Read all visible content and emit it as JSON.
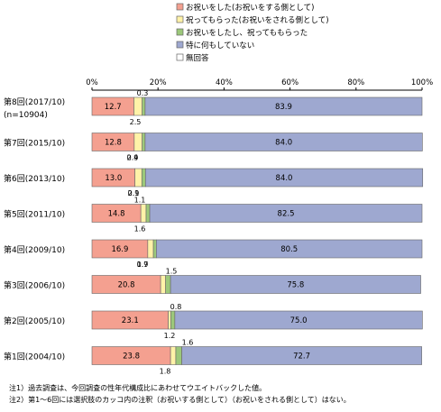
{
  "chart_data": {
    "type": "bar",
    "orientation": "horizontal",
    "stacked": true,
    "percent": true,
    "xlim": [
      0,
      100
    ],
    "x_ticks": [
      "0%",
      "20%",
      "40%",
      "60%",
      "80%",
      "100%"
    ],
    "categories": [
      "第8回(2017/10)\n(n=10904)",
      "第7回(2015/10)",
      "第6回(2013/10)",
      "第5回(2011/10)",
      "第4回(2009/10)",
      "第3回(2006/10)",
      "第2回(2005/10)",
      "第1回(2004/10)"
    ],
    "series": [
      {
        "name": "お祝いをした(お祝いをする側として)",
        "color": "#f4a090",
        "values": [
          12.7,
          12.8,
          13.0,
          14.8,
          16.9,
          20.8,
          23.1,
          23.8
        ]
      },
      {
        "name": "祝ってもらった(お祝いをされる側として)",
        "color": "#fff2a8",
        "values": [
          2.5,
          2.4,
          2.1,
          1.6,
          1.7,
          1.5,
          0.8,
          1.6
        ]
      },
      {
        "name": "お祝いをしたし、祝ってももらった",
        "color": "#9cc87a",
        "values": [
          0.9,
          0.9,
          1.1,
          1.1,
          0.9,
          1.5,
          1.2,
          1.8
        ]
      },
      {
        "name": "特に何もしていない",
        "color": "#9ea8d0",
        "values": [
          83.9,
          84.0,
          84.0,
          82.5,
          80.5,
          75.8,
          75.0,
          72.7
        ]
      },
      {
        "name": "無回答",
        "color": "#ffffff",
        "values": [
          null,
          null,
          null,
          null,
          null,
          null,
          null,
          null
        ]
      }
    ],
    "small_labels": [
      {
        "bar": 0,
        "text": "0.3",
        "pos": "above"
      },
      {
        "bar": 0,
        "text": "2.5",
        "pos": "below"
      },
      {
        "bar": 1,
        "text": "0.9",
        "pos": "below"
      },
      {
        "bar": 1,
        "text": "2.4",
        "pos": "below"
      },
      {
        "bar": 2,
        "text": "0.9",
        "pos": "below"
      },
      {
        "bar": 2,
        "text": "2.1",
        "pos": "below"
      },
      {
        "bar": 3,
        "text": "1.1",
        "pos": "above"
      },
      {
        "bar": 3,
        "text": "1.6",
        "pos": "below"
      },
      {
        "bar": 4,
        "text": "0.9",
        "pos": "below"
      },
      {
        "bar": 4,
        "text": "1.7",
        "pos": "below"
      },
      {
        "bar": 5,
        "text": "1.5",
        "pos": "above"
      },
      {
        "bar": 6,
        "text": "0.8",
        "pos": "above"
      },
      {
        "bar": 6,
        "text": "1.2",
        "pos": "below"
      },
      {
        "bar": 7,
        "text": "1.6",
        "pos": "above"
      },
      {
        "bar": 7,
        "text": "1.8",
        "pos": "below"
      }
    ],
    "legend_position": "top-right",
    "grid": false
  },
  "notes": [
    "注1）過去調査は、今回調査の性年代構成比にあわせてウエイトバックした値。",
    "注2）第1～6回には選択肢のカッコ内の注釈（お祝いする側として）（お祝いをされる側として）はない。"
  ]
}
